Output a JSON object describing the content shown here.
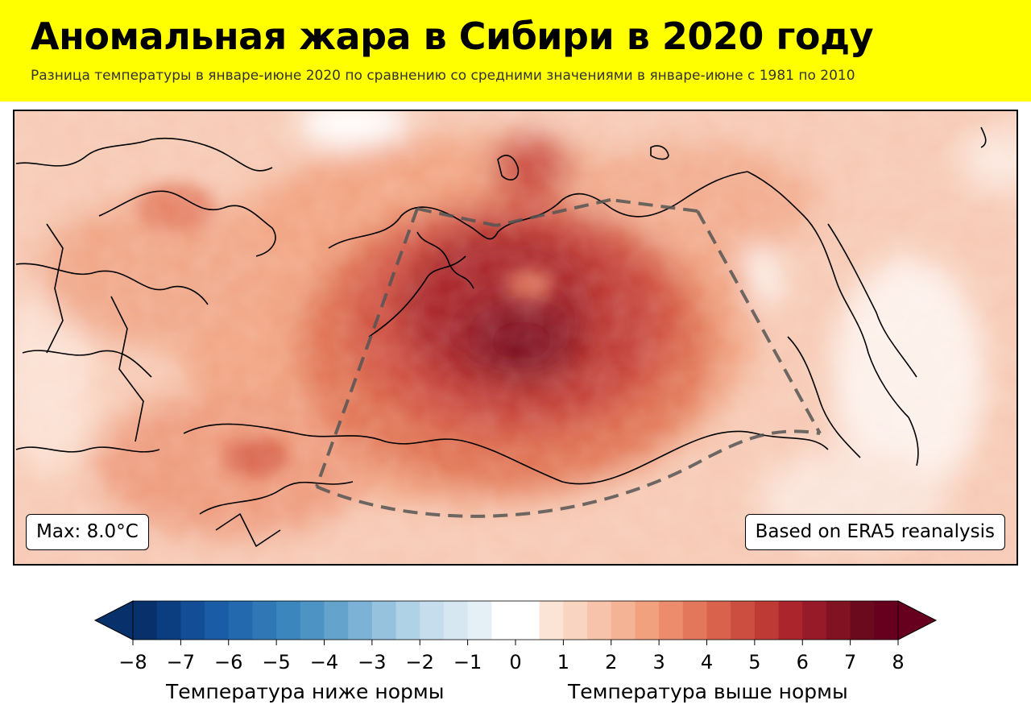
{
  "header": {
    "title": "Аномальная жара в Сибири в 2020 году",
    "subtitle": "Разница температуры в январе-июне 2020 по сравнению со средними значениями в январе-июне с 1981 по 2010",
    "background_color": "#ffff00"
  },
  "map": {
    "max_label": "Max: 8.0°C",
    "source_label": "Based on ERA5 reanalysis",
    "region_outline_style": "dashed",
    "max_anomaly": 8.0
  },
  "colorbar": {
    "ticks": [
      "−8",
      "−7",
      "−6",
      "−5",
      "−4",
      "−3",
      "−2",
      "−1",
      "0",
      "1",
      "2",
      "3",
      "4",
      "5",
      "6",
      "7",
      "8"
    ],
    "min": -8,
    "max": 8,
    "step": 0.5,
    "extend": "both",
    "label_below": "Температура ниже нормы",
    "label_above": "Температура выше нормы",
    "colors": [
      "#08306b",
      "#0b3e80",
      "#124d96",
      "#1a5ca6",
      "#2369ad",
      "#2f77b5",
      "#3b86bd",
      "#4d94c5",
      "#63a3cc",
      "#7cb2d5",
      "#96c2de",
      "#b0d2e7",
      "#c5dded",
      "#d6e7f2",
      "#e5eff6",
      "#ffffff",
      "#ffffff",
      "#fbe3d6",
      "#f9d4c0",
      "#f7c4ab",
      "#f5b395",
      "#f2a17f",
      "#ec8c6c",
      "#e3775b",
      "#d8624c",
      "#cc4e40",
      "#bd3a35",
      "#ab252d",
      "#961a27",
      "#801221",
      "#6b0a1c",
      "#67001f"
    ],
    "extend_low_color": "#08306b",
    "extend_high_color": "#67001f"
  }
}
